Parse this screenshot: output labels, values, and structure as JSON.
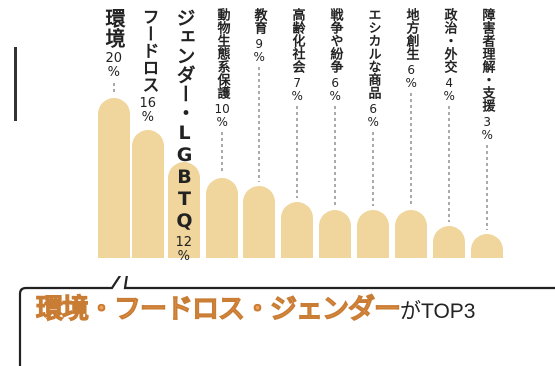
{
  "chart_data": {
    "type": "bar",
    "categories": [
      "環境",
      "フードロス",
      "ジェンダー・LGBTQ",
      "動物生態系保護",
      "教育",
      "高齢化社会",
      "戦争や紛争",
      "エシカルな商品",
      "地方創生",
      "政治・外交",
      "障害者理解・支援"
    ],
    "values": [
      20,
      16,
      12,
      10,
      9,
      7,
      6,
      6,
      6,
      4,
      3
    ],
    "value_labels": [
      "20",
      "16",
      "12",
      "10",
      "9",
      "7",
      "6",
      "6",
      "6",
      "4",
      "3"
    ],
    "unit": "%",
    "bar_color": "#f0d59c",
    "ylim": [
      0,
      20
    ]
  },
  "headline": {
    "main": "環境・フードロス・ジェンダー",
    "suffix": "がTOP3"
  },
  "colors": {
    "bar": "#f0d59c",
    "headline_fill": "#f3a15a",
    "headline_stroke": "#c97c33",
    "leader": "#555555"
  }
}
